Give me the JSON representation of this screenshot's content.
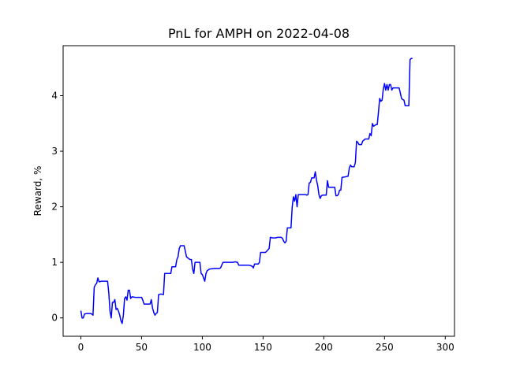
{
  "chart_data": {
    "type": "line",
    "title": "PnL for AMPH on 2022-04-08",
    "xlabel": "",
    "ylabel": "Reward, %",
    "xlim": [
      -14.6,
      307.6
    ],
    "ylim": [
      -0.33,
      4.9
    ],
    "x_ticks": [
      0,
      50,
      100,
      150,
      200,
      250,
      300
    ],
    "y_ticks": [
      0,
      1,
      2,
      3,
      4
    ],
    "grid": false,
    "series": [
      {
        "color": "#0000ff",
        "points": [
          [
            0,
            0.13
          ],
          [
            1,
            0.0
          ],
          [
            2,
            0.0
          ],
          [
            3,
            0.07
          ],
          [
            5,
            0.08
          ],
          [
            8,
            0.08
          ],
          [
            9,
            0.07
          ],
          [
            10,
            0.05
          ],
          [
            11,
            0.55
          ],
          [
            12,
            0.6
          ],
          [
            13,
            0.62
          ],
          [
            14,
            0.72
          ],
          [
            15,
            0.65
          ],
          [
            17,
            0.66
          ],
          [
            20,
            0.66
          ],
          [
            22,
            0.66
          ],
          [
            23,
            0.45
          ],
          [
            24,
            0.12
          ],
          [
            25,
            0.0
          ],
          [
            26,
            0.28
          ],
          [
            27,
            0.28
          ],
          [
            28,
            0.33
          ],
          [
            29,
            0.15
          ],
          [
            30,
            0.17
          ],
          [
            31,
            0.12
          ],
          [
            32,
            0.05
          ],
          [
            33,
            -0.05
          ],
          [
            34,
            -0.1
          ],
          [
            35,
            0.05
          ],
          [
            36,
            0.35
          ],
          [
            37,
            0.38
          ],
          [
            38,
            0.32
          ],
          [
            39,
            0.5
          ],
          [
            40,
            0.5
          ],
          [
            41,
            0.35
          ],
          [
            42,
            0.38
          ],
          [
            45,
            0.37
          ],
          [
            50,
            0.37
          ],
          [
            51,
            0.32
          ],
          [
            52,
            0.25
          ],
          [
            55,
            0.25
          ],
          [
            57,
            0.25
          ],
          [
            58,
            0.33
          ],
          [
            59,
            0.18
          ],
          [
            60,
            0.1
          ],
          [
            61,
            0.05
          ],
          [
            62,
            0.08
          ],
          [
            63,
            0.1
          ],
          [
            64,
            0.42
          ],
          [
            66,
            0.43
          ],
          [
            68,
            0.42
          ],
          [
            69,
            0.8
          ],
          [
            72,
            0.8
          ],
          [
            74,
            0.8
          ],
          [
            75,
            0.92
          ],
          [
            78,
            0.92
          ],
          [
            79,
            1.05
          ],
          [
            80,
            1.1
          ],
          [
            81,
            1.25
          ],
          [
            82,
            1.3
          ],
          [
            85,
            1.3
          ],
          [
            86,
            1.2
          ],
          [
            87,
            1.1
          ],
          [
            88,
            1.08
          ],
          [
            90,
            1.05
          ],
          [
            91,
            1.05
          ],
          [
            92,
            0.88
          ],
          [
            93,
            0.8
          ],
          [
            94,
            1.0
          ],
          [
            96,
            1.0
          ],
          [
            98,
            1.0
          ],
          [
            99,
            0.8
          ],
          [
            100,
            0.78
          ],
          [
            101,
            0.72
          ],
          [
            102,
            0.66
          ],
          [
            103,
            0.8
          ],
          [
            104,
            0.85
          ],
          [
            106,
            0.88
          ],
          [
            110,
            0.89
          ],
          [
            114,
            0.89
          ],
          [
            115,
            0.9
          ],
          [
            116,
            0.95
          ],
          [
            117,
            1.0
          ],
          [
            120,
            1.0
          ],
          [
            122,
            1.0
          ],
          [
            125,
            1.0
          ],
          [
            127,
            1.01
          ],
          [
            129,
            1.0
          ],
          [
            130,
            0.95
          ],
          [
            133,
            0.95
          ],
          [
            135,
            0.95
          ],
          [
            138,
            0.95
          ],
          [
            140,
            0.94
          ],
          [
            141,
            0.93
          ],
          [
            142,
            0.9
          ],
          [
            143,
            0.97
          ],
          [
            145,
            0.97
          ],
          [
            146,
            0.97
          ],
          [
            147,
            1.0
          ],
          [
            148,
            1.18
          ],
          [
            150,
            1.18
          ],
          [
            152,
            1.18
          ],
          [
            153,
            1.2
          ],
          [
            155,
            1.25
          ],
          [
            156,
            1.45
          ],
          [
            158,
            1.44
          ],
          [
            160,
            1.44
          ],
          [
            162,
            1.45
          ],
          [
            165,
            1.45
          ],
          [
            166,
            1.43
          ],
          [
            167,
            1.38
          ],
          [
            168,
            1.35
          ],
          [
            169,
            1.38
          ],
          [
            170,
            1.62
          ],
          [
            173,
            1.62
          ],
          [
            174,
            2.0
          ],
          [
            175,
            2.18
          ],
          [
            176,
            2.1
          ],
          [
            177,
            2.22
          ],
          [
            178,
            2.0
          ],
          [
            179,
            2.22
          ],
          [
            182,
            2.22
          ],
          [
            185,
            2.22
          ],
          [
            186,
            2.21
          ],
          [
            187,
            2.22
          ],
          [
            188,
            2.43
          ],
          [
            189,
            2.44
          ],
          [
            190,
            2.52
          ],
          [
            192,
            2.52
          ],
          [
            193,
            2.63
          ],
          [
            194,
            2.48
          ],
          [
            195,
            2.38
          ],
          [
            196,
            2.22
          ],
          [
            197,
            2.15
          ],
          [
            198,
            2.2
          ],
          [
            199,
            2.21
          ],
          [
            201,
            2.21
          ],
          [
            202,
            2.21
          ],
          [
            203,
            2.47
          ],
          [
            204,
            2.35
          ],
          [
            206,
            2.35
          ],
          [
            209,
            2.35
          ],
          [
            210,
            2.2
          ],
          [
            211,
            2.2
          ],
          [
            212,
            2.22
          ],
          [
            213,
            2.3
          ],
          [
            214,
            2.3
          ],
          [
            215,
            2.53
          ],
          [
            218,
            2.54
          ],
          [
            220,
            2.55
          ],
          [
            221,
            2.7
          ],
          [
            222,
            2.75
          ],
          [
            223,
            2.72
          ],
          [
            225,
            2.72
          ],
          [
            226,
            2.8
          ],
          [
            227,
            3.18
          ],
          [
            228,
            3.16
          ],
          [
            229,
            3.12
          ],
          [
            231,
            3.12
          ],
          [
            232,
            3.18
          ],
          [
            233,
            3.2
          ],
          [
            234,
            3.22
          ],
          [
            237,
            3.22
          ],
          [
            238,
            3.32
          ],
          [
            239,
            3.28
          ],
          [
            240,
            3.5
          ],
          [
            241,
            3.45
          ],
          [
            243,
            3.48
          ],
          [
            244,
            3.48
          ],
          [
            245,
            3.7
          ],
          [
            246,
            3.95
          ],
          [
            247,
            3.9
          ],
          [
            248,
            3.92
          ],
          [
            249,
            4.12
          ],
          [
            250,
            4.22
          ],
          [
            251,
            4.1
          ],
          [
            252,
            4.2
          ],
          [
            253,
            4.1
          ],
          [
            254,
            4.2
          ],
          [
            255,
            4.2
          ],
          [
            256,
            4.1
          ],
          [
            257,
            4.14
          ],
          [
            262,
            4.14
          ],
          [
            263,
            4.05
          ],
          [
            264,
            3.95
          ],
          [
            265,
            3.93
          ],
          [
            266,
            3.92
          ],
          [
            267,
            3.82
          ],
          [
            270,
            3.82
          ],
          [
            271,
            4.65
          ],
          [
            272,
            4.67
          ],
          [
            273,
            4.67
          ]
        ]
      }
    ]
  }
}
